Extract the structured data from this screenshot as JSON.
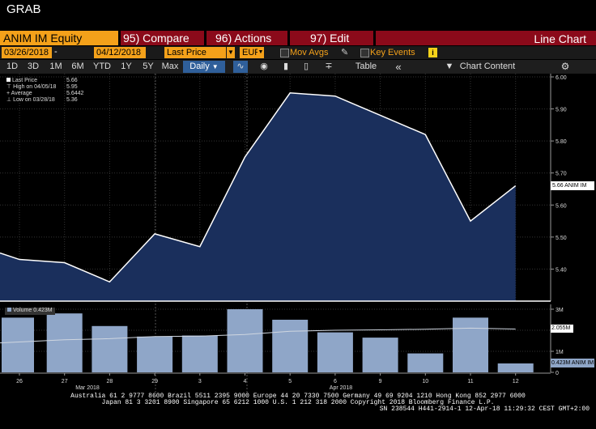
{
  "window": {
    "title": "GRAB"
  },
  "toolbar": {
    "security": "ANIM IM Equity",
    "menus": [
      {
        "num": "95)",
        "label": "Compare"
      },
      {
        "num": "96)",
        "label": "Actions"
      },
      {
        "num": "97)",
        "label": "Edit"
      }
    ],
    "chart_type": "Line Chart"
  },
  "range": {
    "start": "03/26/2018",
    "end": "04/12/2018",
    "field": "Last Price",
    "currency": "EUR",
    "mov_avgs": "Mov Avgs",
    "key_events": "Key Events",
    "info": "i"
  },
  "periods": [
    "1D",
    "3D",
    "1M",
    "6M",
    "YTD",
    "1Y",
    "5Y",
    "Max"
  ],
  "frequency": "Daily",
  "table_label": "Table",
  "chart_content_label": "Chart Content",
  "legend": {
    "last_price_label": "Last Price",
    "last_price": "5.66",
    "high_label": "High on 04/05/18",
    "high": "5.95",
    "average_label": "Average",
    "average": "5.6442",
    "low_label": "Low on 03/28/18",
    "low": "5.36"
  },
  "price_tag": "5.66 ANIM IM",
  "volume_legend": "Volume 0.423M",
  "volume_avg_tag": "2.055M",
  "volume_tag": "0.423M ANIM IM",
  "x_month_labels": [
    "Mar 2018",
    "Apr 2018"
  ],
  "footer": {
    "line1": "Australia 61 2 9777 8600 Brazil 5511 2395 9000 Europe 44 20 7330 7500 Germany 49 69 9204 1210 Hong Kong 852 2977 6000",
    "line2": "Japan 81 3 3201 8900         Singapore 65 6212 1000        U.S. 1 212 318 2000              Copyright 2018 Bloomberg Finance L.P.",
    "line3": "SN 238544 H441-2914-1 12-Apr-18 11:29:32 CEST GMT+2:00"
  },
  "chart_data": [
    {
      "type": "line",
      "x": [
        "26",
        "27",
        "28",
        "29",
        "3",
        "4",
        "5",
        "6",
        "9",
        "10",
        "11",
        "12"
      ],
      "values": [
        5.43,
        5.42,
        5.36,
        5.51,
        5.47,
        5.75,
        5.95,
        5.94,
        5.88,
        5.82,
        5.55,
        5.66
      ],
      "start_value": 5.45,
      "ylim": [
        5.3,
        6.0
      ],
      "yticks": [
        "6.00",
        "5.90",
        "5.80",
        "5.70",
        "5.60",
        "5.50",
        "5.40"
      ],
      "color": "#ffffff",
      "fill": "#1a2f5c"
    },
    {
      "type": "bar",
      "categories": [
        "26",
        "27",
        "28",
        "29",
        "3",
        "4",
        "5",
        "6",
        "9",
        "10",
        "11",
        "12"
      ],
      "values": [
        2.6,
        2.8,
        2.2,
        1.7,
        1.75,
        3.0,
        2.5,
        1.9,
        1.65,
        0.9,
        2.6,
        0.423
      ],
      "moving_avg": [
        1.4,
        1.55,
        1.6,
        1.7,
        1.72,
        1.8,
        1.95,
        2.0,
        2.02,
        2.05,
        2.1,
        2.055
      ],
      "unit": "M",
      "ylim": [
        0,
        3.0
      ],
      "yticks": [
        "3M",
        "2M",
        "1M",
        "0"
      ],
      "color": "#8fa6c8"
    }
  ]
}
